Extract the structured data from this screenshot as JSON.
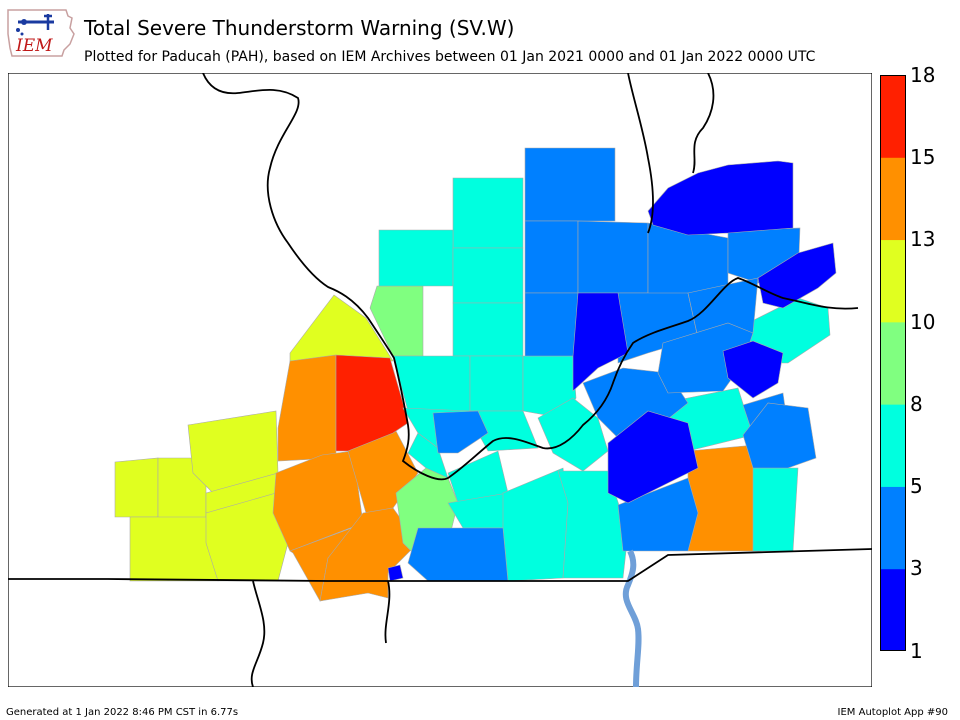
{
  "header": {
    "logo_text": "IEM",
    "title": "Total Severe Thunderstorm Warning (SV.W)",
    "subtitle": "Plotted for Paducah (PAH), based on IEM Archives  between 01 Jan 2021 0000 and 01 Jan 2022 0000 UTC"
  },
  "colorbar": {
    "ticks": [
      "18",
      "15",
      "13",
      "10",
      "8",
      "5",
      "3",
      "1"
    ],
    "bins": [
      {
        "range": "1-3",
        "color": "#0000ff"
      },
      {
        "range": "3-5",
        "color": "#0080ff"
      },
      {
        "range": "5-8",
        "color": "#00ffdf"
      },
      {
        "range": "8-10",
        "color": "#80ff80"
      },
      {
        "range": "10-13",
        "color": "#e0ff20"
      },
      {
        "range": "13-15",
        "color": "#ff9000"
      },
      {
        "range": "15-18",
        "color": "#ff2000"
      }
    ]
  },
  "colors": {
    "river": "#6f9fd8",
    "border": "#000000"
  },
  "footer": {
    "generated": "Generated at 1 Jan 2022 8:46 PM CST in 6.77s",
    "app": "IEM Autoplot App #90"
  }
}
